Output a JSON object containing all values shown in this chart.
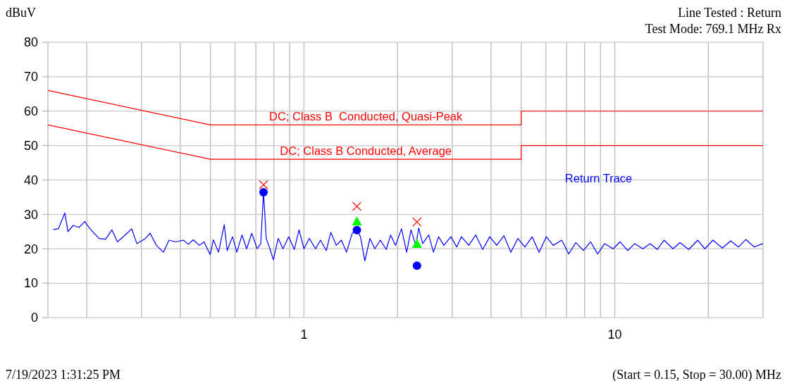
{
  "chart_data": {
    "type": "line",
    "title": "Line Tested : Return",
    "subtitle": "Test Mode: 769.1 MHz Rx",
    "ylabel": "dBuV",
    "annotations": [
      "7/19/2023 1:31:25 PM",
      "(Start = 0.15, Stop = 30.00) MHz"
    ],
    "log": "x",
    "grid": true,
    "xlim": [
      0.15,
      30
    ],
    "ylim": [
      0,
      80
    ],
    "xticks": [
      {
        "value": 0.2,
        "label": null
      },
      {
        "value": 0.3,
        "label": null
      },
      {
        "value": 0.4,
        "label": null
      },
      {
        "value": 0.5,
        "label": null
      },
      {
        "value": 0.6,
        "label": null
      },
      {
        "value": 0.7,
        "label": null
      },
      {
        "value": 0.8,
        "label": null
      },
      {
        "value": 0.9,
        "label": null
      },
      1,
      {
        "value": 2,
        "label": null
      },
      {
        "value": 3,
        "label": null
      },
      {
        "value": 4,
        "label": null
      },
      {
        "value": 5,
        "label": null
      },
      {
        "value": 6,
        "label": null
      },
      {
        "value": 7,
        "label": null
      },
      {
        "value": 8,
        "label": null
      },
      {
        "value": 9,
        "label": null
      },
      10,
      {
        "value": 20,
        "label": null
      }
    ],
    "yticks": [
      0,
      10,
      20,
      30,
      40,
      50,
      60,
      70,
      80
    ],
    "series": [
      {
        "name": "Return Trace",
        "color": "#0000ff",
        "marker": "none",
        "x": [
          0.156,
          0.162,
          0.17,
          0.174,
          0.181,
          0.189,
          0.197,
          0.205,
          0.219,
          0.23,
          0.241,
          0.251,
          0.266,
          0.279,
          0.29,
          0.307,
          0.32,
          0.335,
          0.353,
          0.368,
          0.387,
          0.409,
          0.425,
          0.44,
          0.461,
          0.477,
          0.499,
          0.511,
          0.531,
          0.554,
          0.566,
          0.589,
          0.608,
          0.632,
          0.654,
          0.679,
          0.707,
          0.726,
          0.741,
          0.756,
          0.777,
          0.797,
          0.826,
          0.856,
          0.893,
          0.931,
          0.964,
          1.0,
          1.04,
          1.09,
          1.13,
          1.18,
          1.22,
          1.27,
          1.32,
          1.37,
          1.43,
          1.48,
          1.52,
          1.57,
          1.63,
          1.69,
          1.76,
          1.84,
          1.9,
          1.97,
          2.06,
          2.14,
          2.21,
          2.29,
          2.34,
          2.41,
          2.52,
          2.61,
          2.71,
          2.82,
          2.97,
          3.1,
          3.21,
          3.39,
          3.57,
          3.76,
          3.96,
          4.17,
          4.4,
          4.63,
          4.88,
          5.14,
          5.42,
          5.71,
          6.02,
          6.34,
          6.75,
          7.11,
          7.49,
          7.93,
          8.36,
          8.81,
          9.28,
          9.88,
          10.4,
          11.0,
          11.6,
          12.3,
          13.0,
          13.7,
          14.4,
          15.4,
          16.2,
          17.3,
          18.5,
          19.5,
          20.7,
          22.2,
          23.6,
          25.0,
          26.4,
          28.1,
          30.0
        ],
        "values": [
          25.6,
          25.8,
          30.4,
          25,
          26.8,
          26.2,
          27.9,
          25.8,
          23,
          22.8,
          25.5,
          22,
          24,
          25.8,
          21.5,
          22.8,
          24.5,
          21,
          19,
          22.5,
          22,
          22.5,
          21.3,
          22.6,
          21,
          22,
          18.3,
          22.6,
          19,
          27,
          19.5,
          23.5,
          19,
          24,
          20,
          24.5,
          20,
          21.5,
          36.4,
          23,
          20,
          16.8,
          23,
          20,
          23.5,
          19.8,
          25.5,
          20,
          23,
          20,
          22.5,
          19.5,
          24.8,
          21,
          22.5,
          19,
          24.5,
          25.5,
          23.5,
          16.5,
          23,
          20,
          22.5,
          19.8,
          24,
          21,
          25.8,
          19,
          25.5,
          21,
          26,
          21.5,
          24,
          19,
          23.5,
          21,
          23.5,
          20.5,
          23.5,
          21,
          24,
          19.8,
          23.5,
          21,
          23.8,
          19,
          23,
          20.5,
          23.5,
          19,
          23.5,
          21,
          22.5,
          18.5,
          21.8,
          19.5,
          22,
          18.5,
          21.5,
          20,
          22,
          19.5,
          21.5,
          20,
          21.5,
          19.8,
          22.5,
          20,
          21.8,
          19.8,
          22.5,
          20,
          22.5,
          20.2,
          22.3,
          20.5,
          22.7,
          20.5,
          21.5
        ]
      },
      {
        "name": "DC; Class B  Conducted, Quasi-Peak",
        "color": "#ff0000",
        "marker": "none",
        "x": [
          0.15,
          0.5,
          5,
          5,
          30
        ],
        "values": [
          66,
          56,
          56,
          60,
          60
        ]
      },
      {
        "name": "DC; Class B Conducted, Average",
        "color": "#ff0000",
        "marker": "none",
        "x": [
          0.15,
          0.5,
          5,
          5,
          30
        ],
        "values": [
          56,
          46,
          46,
          50,
          50
        ]
      },
      {
        "type": "scatter",
        "color": "#ff0000",
        "marker": "cross",
        "x": [
          0.741,
          1.48,
          2.31
        ],
        "values": [
          38.6,
          32.3,
          27.8
        ]
      },
      {
        "type": "scatter",
        "color": "#00ff00",
        "marker": "triangle",
        "x": [
          1.48,
          2.31
        ],
        "values": [
          28,
          21.5
        ]
      },
      {
        "type": "scatter",
        "color": "#0000ff",
        "marker": "circle",
        "x": [
          0.741,
          1.48,
          2.31
        ],
        "values": [
          36.4,
          25.4,
          15.1
        ]
      }
    ]
  }
}
